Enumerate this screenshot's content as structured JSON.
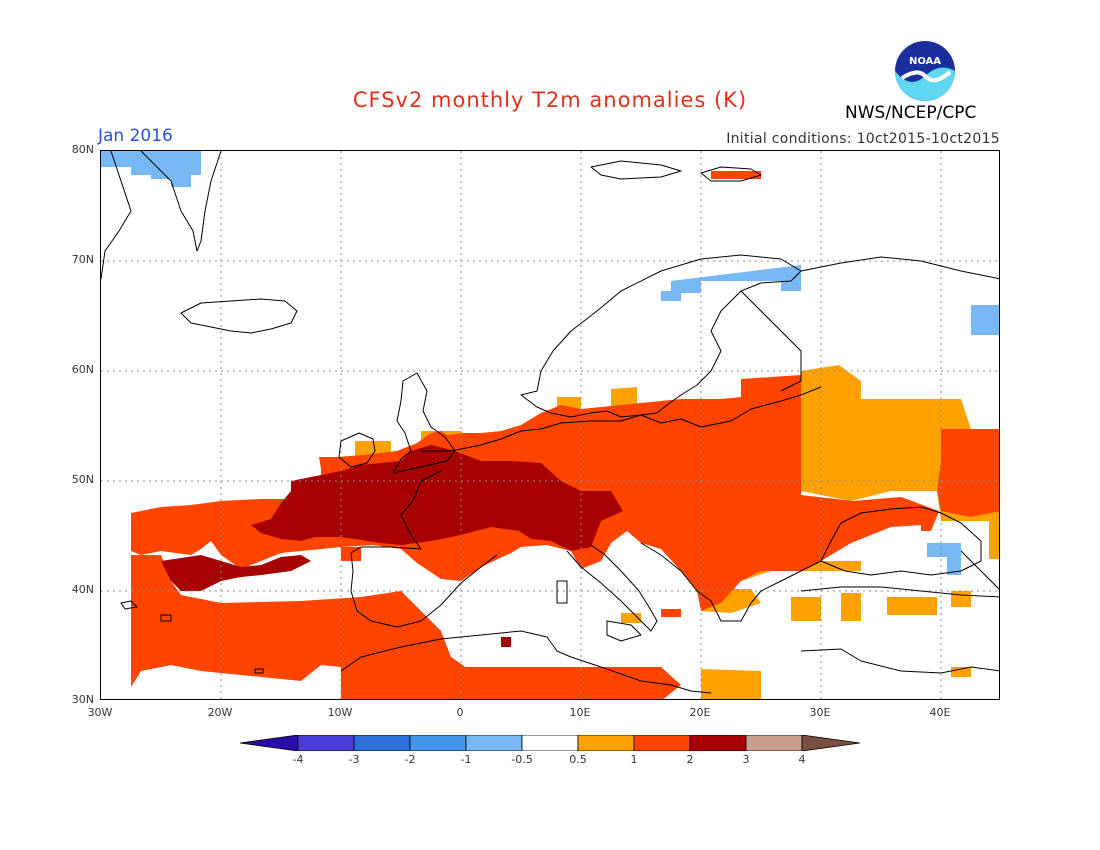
{
  "header": {
    "title": "CFSv2 monthly T2m anomalies (K)",
    "month": "Jan 2016",
    "initial_conditions": "Initial conditions: 10ct2015-10ct2015",
    "agency": "NWS/NCEP/CPC",
    "logo_text": "NOAA"
  },
  "map": {
    "projection": "lat-lon",
    "lon_range": [
      -30,
      45
    ],
    "lat_range": [
      30,
      80
    ],
    "lat_ticks": [
      "80N",
      "70N",
      "60N",
      "50N",
      "40N",
      "30N"
    ],
    "lon_ticks": [
      "30W",
      "20W",
      "10W",
      "0",
      "10E",
      "20E",
      "30E",
      "40E"
    ],
    "grid": "dotted"
  },
  "colorbar": {
    "colors": [
      "#2a0ca6",
      "#4b3ed6",
      "#2e6fd8",
      "#4596ea",
      "#78b8f4",
      "#ffffff",
      "#ffa200",
      "#ff4400",
      "#a60000",
      "#c6a08c",
      "#7a4e3c"
    ],
    "labels": [
      "-4",
      "-3",
      "-2",
      "-1",
      "-0.5",
      "0.5",
      "1",
      "2",
      "3",
      "4"
    ]
  }
}
